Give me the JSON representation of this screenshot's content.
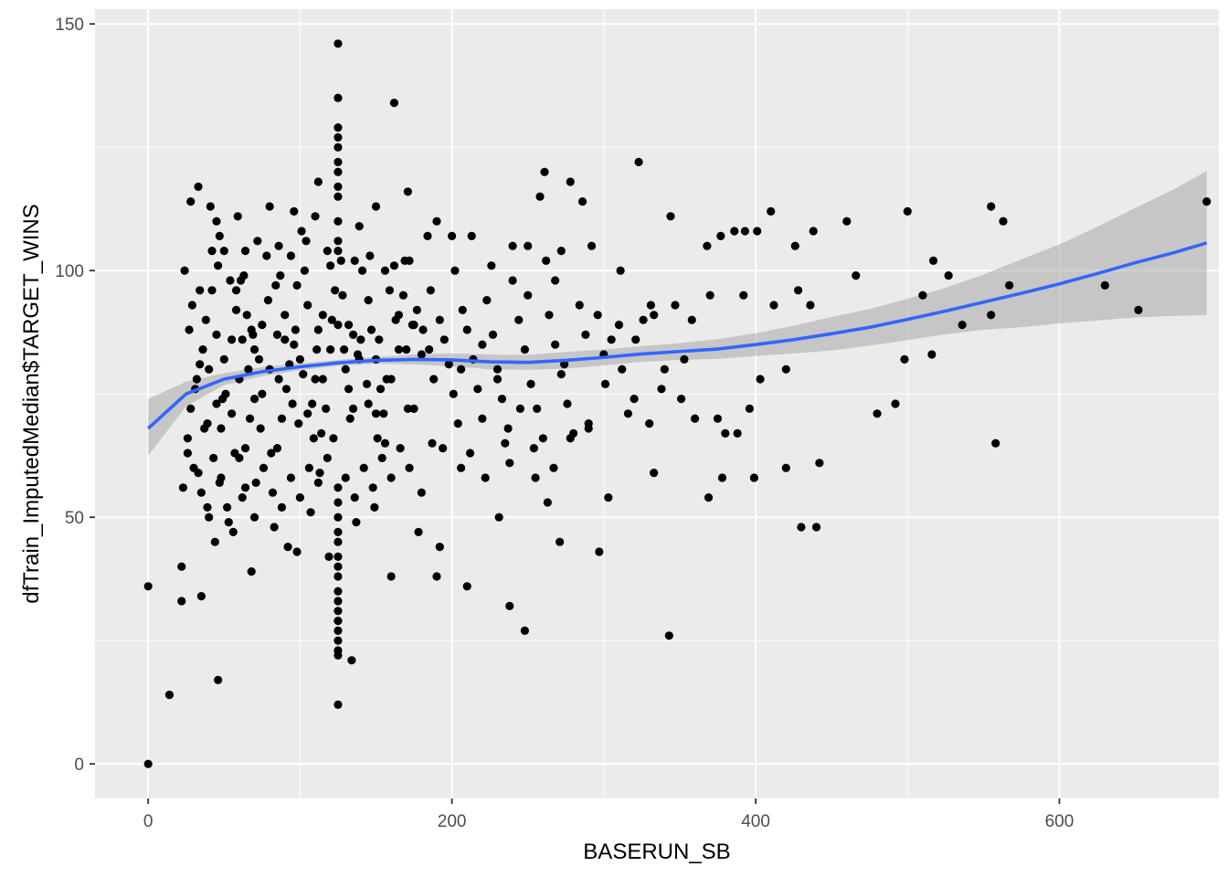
{
  "chart_data": {
    "type": "scatter",
    "title": "",
    "xlabel": "BASERUN_SB",
    "ylabel": "dfTrain_ImputedMedian$TARGET_WINS",
    "xlim": [
      -35,
      705
    ],
    "ylim": [
      -7,
      153
    ],
    "x_ticks": [
      0,
      200,
      400,
      600
    ],
    "y_ticks": [
      0,
      50,
      100,
      150
    ],
    "x_tick_labels": [
      "0",
      "200",
      "400",
      "600"
    ],
    "y_tick_labels": [
      "0",
      "50",
      "100",
      "150"
    ],
    "grid": true,
    "legend": "none",
    "colors": {
      "panel": "#ebebeb",
      "grid": "#ffffff",
      "points": "#000000",
      "smooth_line": "#3366ff",
      "confidence_band": "#999999"
    },
    "smooth": {
      "x": [
        0,
        25,
        50,
        75,
        100,
        125,
        150,
        175,
        200,
        225,
        250,
        275,
        300,
        325,
        350,
        375,
        400,
        425,
        450,
        475,
        500,
        525,
        550,
        575,
        600,
        625,
        650,
        675,
        697
      ],
      "y": [
        68,
        75,
        78,
        79.5,
        80.5,
        81.3,
        81.8,
        82,
        81.9,
        81.5,
        81.4,
        81.8,
        82.4,
        83.1,
        83.6,
        84.1,
        85,
        86,
        87.2,
        88.5,
        90.1,
        91.8,
        93.6,
        95.4,
        97.3,
        99.4,
        101.6,
        103.6,
        105.6
      ],
      "ci_lower": [
        62.5,
        72.5,
        76.8,
        78.6,
        79.8,
        80.7,
        81.1,
        81,
        80.6,
        80,
        79.9,
        80.1,
        80.8,
        81.5,
        81.9,
        82.1,
        82.7,
        83.2,
        83.8,
        84.8,
        85.9,
        87.1,
        88,
        88.5,
        89.3,
        89.9,
        90.5,
        90.8,
        91
      ],
      "ci_upper": [
        74,
        77.5,
        79.2,
        80.4,
        81.2,
        81.9,
        82.5,
        83,
        83.2,
        83,
        82.9,
        83.5,
        84,
        84.7,
        85.3,
        86.1,
        87.3,
        88.8,
        90.6,
        92.2,
        94.3,
        96.5,
        99.2,
        102.3,
        105.3,
        108.9,
        112.7,
        116.4,
        120.2
      ]
    },
    "points": [
      [
        0,
        36
      ],
      [
        0,
        0
      ],
      [
        14,
        14
      ],
      [
        22,
        40
      ],
      [
        22,
        33
      ],
      [
        35,
        34
      ],
      [
        46,
        17
      ],
      [
        68,
        39
      ],
      [
        112,
        118
      ],
      [
        125,
        146
      ],
      [
        125,
        135
      ],
      [
        125,
        129
      ],
      [
        125,
        127
      ],
      [
        125,
        125
      ],
      [
        125,
        122
      ],
      [
        125,
        120
      ],
      [
        125,
        117
      ],
      [
        125,
        115
      ],
      [
        125,
        110
      ],
      [
        125,
        106
      ],
      [
        125,
        104
      ],
      [
        125,
        56
      ],
      [
        125,
        53
      ],
      [
        125,
        50
      ],
      [
        125,
        47
      ],
      [
        125,
        45
      ],
      [
        125,
        42
      ],
      [
        125,
        40
      ],
      [
        125,
        38
      ],
      [
        125,
        35
      ],
      [
        125,
        33
      ],
      [
        125,
        31
      ],
      [
        125,
        29
      ],
      [
        125,
        27
      ],
      [
        125,
        25
      ],
      [
        125,
        23
      ],
      [
        125,
        22
      ],
      [
        125,
        12
      ],
      [
        134,
        21
      ],
      [
        162,
        134
      ],
      [
        160,
        38
      ],
      [
        33,
        117
      ],
      [
        41,
        113
      ],
      [
        45,
        110
      ],
      [
        28,
        114
      ],
      [
        59,
        111
      ],
      [
        80,
        113
      ],
      [
        96,
        112
      ],
      [
        101,
        108
      ],
      [
        110,
        111
      ],
      [
        139,
        109
      ],
      [
        150,
        113
      ],
      [
        171,
        116
      ],
      [
        184,
        107
      ],
      [
        190,
        110
      ],
      [
        200,
        107
      ],
      [
        213,
        107
      ],
      [
        206,
        80
      ],
      [
        220,
        85
      ],
      [
        230,
        78
      ],
      [
        240,
        105
      ],
      [
        250,
        105
      ],
      [
        258,
        115
      ],
      [
        261,
        120
      ],
      [
        268,
        98
      ],
      [
        278,
        118
      ],
      [
        286,
        114
      ],
      [
        292,
        105
      ],
      [
        305,
        86
      ],
      [
        311,
        100
      ],
      [
        323,
        122
      ],
      [
        331,
        93
      ],
      [
        340,
        80
      ],
      [
        344,
        111
      ],
      [
        353,
        82
      ],
      [
        368,
        105
      ],
      [
        377,
        107
      ],
      [
        386,
        108
      ],
      [
        393,
        108
      ],
      [
        401,
        108
      ],
      [
        410,
        112
      ],
      [
        426,
        105
      ],
      [
        438,
        108
      ],
      [
        460,
        110
      ],
      [
        466,
        99
      ],
      [
        480,
        71
      ],
      [
        492,
        73
      ],
      [
        500,
        112
      ],
      [
        510,
        95
      ],
      [
        517,
        102
      ],
      [
        527,
        99
      ],
      [
        536,
        89
      ],
      [
        555,
        113
      ],
      [
        563,
        110
      ],
      [
        567,
        97
      ],
      [
        558,
        65
      ],
      [
        555,
        91
      ],
      [
        630,
        97
      ],
      [
        652,
        92
      ],
      [
        697,
        114
      ],
      [
        498,
        82
      ],
      [
        516,
        83
      ],
      [
        420,
        60
      ],
      [
        430,
        48
      ],
      [
        440,
        48
      ],
      [
        442,
        61
      ],
      [
        399,
        58
      ],
      [
        380,
        67
      ],
      [
        378,
        58
      ],
      [
        369,
        54
      ],
      [
        343,
        26
      ],
      [
        333,
        59
      ],
      [
        303,
        54
      ],
      [
        297,
        43
      ],
      [
        290,
        69
      ],
      [
        271,
        45
      ],
      [
        263,
        53
      ],
      [
        254,
        64
      ],
      [
        248,
        27
      ],
      [
        238,
        32
      ],
      [
        231,
        50
      ],
      [
        210,
        36
      ],
      [
        192,
        44
      ],
      [
        190,
        38
      ],
      [
        178,
        47
      ],
      [
        180,
        55
      ],
      [
        187,
        65
      ],
      [
        206,
        60
      ],
      [
        222,
        58
      ],
      [
        235,
        65
      ],
      [
        245,
        72
      ],
      [
        255,
        58
      ],
      [
        267,
        60
      ],
      [
        278,
        66
      ],
      [
        290,
        68
      ],
      [
        301,
        77
      ],
      [
        312,
        80
      ],
      [
        320,
        74
      ],
      [
        330,
        69
      ],
      [
        338,
        76
      ],
      [
        351,
        74
      ],
      [
        360,
        70
      ],
      [
        375,
        70
      ],
      [
        388,
        67
      ],
      [
        396,
        72
      ],
      [
        403,
        78
      ],
      [
        412,
        93
      ],
      [
        420,
        80
      ],
      [
        428,
        96
      ],
      [
        436,
        93
      ],
      [
        392,
        95
      ],
      [
        370,
        95
      ],
      [
        358,
        90
      ],
      [
        347,
        93
      ],
      [
        333,
        91
      ],
      [
        321,
        86
      ],
      [
        310,
        89
      ],
      [
        296,
        91
      ],
      [
        284,
        93
      ],
      [
        272,
        104
      ],
      [
        262,
        102
      ],
      [
        185,
        84
      ],
      [
        188,
        78
      ],
      [
        192,
        90
      ],
      [
        195,
        86
      ],
      [
        198,
        81
      ],
      [
        201,
        75
      ],
      [
        204,
        69
      ],
      [
        207,
        92
      ],
      [
        210,
        88
      ],
      [
        214,
        82
      ],
      [
        217,
        76
      ],
      [
        220,
        70
      ],
      [
        223,
        94
      ],
      [
        227,
        87
      ],
      [
        230,
        80
      ],
      [
        233,
        74
      ],
      [
        237,
        68
      ],
      [
        240,
        98
      ],
      [
        244,
        90
      ],
      [
        248,
        84
      ],
      [
        252,
        77
      ],
      [
        256,
        72
      ],
      [
        260,
        66
      ],
      [
        264,
        91
      ],
      [
        268,
        85
      ],
      [
        272,
        79
      ],
      [
        276,
        73
      ],
      [
        280,
        67
      ],
      [
        186,
        96
      ],
      [
        194,
        64
      ],
      [
        202,
        100
      ],
      [
        212,
        63
      ],
      [
        226,
        101
      ],
      [
        238,
        61
      ],
      [
        250,
        95
      ],
      [
        274,
        81
      ],
      [
        288,
        87
      ],
      [
        300,
        83
      ],
      [
        316,
        71
      ],
      [
        326,
        90
      ],
      [
        30,
        60
      ],
      [
        35,
        55
      ],
      [
        40,
        50
      ],
      [
        44,
        45
      ],
      [
        48,
        58
      ],
      [
        52,
        52
      ],
      [
        56,
        47
      ],
      [
        60,
        62
      ],
      [
        64,
        56
      ],
      [
        70,
        50
      ],
      [
        76,
        60
      ],
      [
        82,
        55
      ],
      [
        88,
        52
      ],
      [
        94,
        58
      ],
      [
        100,
        54
      ],
      [
        106,
        60
      ],
      [
        112,
        57
      ],
      [
        118,
        62
      ],
      [
        130,
        58
      ],
      [
        136,
        54
      ],
      [
        142,
        60
      ],
      [
        148,
        56
      ],
      [
        154,
        62
      ],
      [
        160,
        58
      ],
      [
        166,
        64
      ],
      [
        172,
        60
      ],
      [
        26,
        66
      ],
      [
        28,
        72
      ],
      [
        32,
        78
      ],
      [
        36,
        84
      ],
      [
        38,
        90
      ],
      [
        42,
        96
      ],
      [
        46,
        101
      ],
      [
        50,
        104
      ],
      [
        54,
        98
      ],
      [
        58,
        92
      ],
      [
        62,
        86
      ],
      [
        66,
        80
      ],
      [
        70,
        74
      ],
      [
        74,
        68
      ],
      [
        78,
        103
      ],
      [
        84,
        97
      ],
      [
        90,
        91
      ],
      [
        96,
        85
      ],
      [
        102,
        79
      ],
      [
        108,
        73
      ],
      [
        114,
        67
      ],
      [
        120,
        101
      ],
      [
        128,
        95
      ],
      [
        132,
        89
      ],
      [
        138,
        83
      ],
      [
        144,
        77
      ],
      [
        150,
        71
      ],
      [
        156,
        65
      ],
      [
        162,
        101
      ],
      [
        168,
        95
      ],
      [
        174,
        89
      ],
      [
        180,
        83
      ],
      [
        24,
        100
      ],
      [
        27,
        88
      ],
      [
        31,
        76
      ],
      [
        37,
        68
      ],
      [
        43,
        62
      ],
      [
        49,
        74
      ],
      [
        55,
        86
      ],
      [
        61,
        98
      ],
      [
        67,
        70
      ],
      [
        73,
        82
      ],
      [
        79,
        94
      ],
      [
        85,
        64
      ],
      [
        91,
        76
      ],
      [
        97,
        88
      ],
      [
        103,
        100
      ],
      [
        109,
        66
      ],
      [
        115,
        78
      ],
      [
        121,
        90
      ],
      [
        127,
        102
      ],
      [
        133,
        70
      ],
      [
        139,
        82
      ],
      [
        145,
        94
      ],
      [
        151,
        66
      ],
      [
        157,
        78
      ],
      [
        163,
        90
      ],
      [
        169,
        102
      ],
      [
        175,
        72
      ],
      [
        181,
        88
      ],
      [
        29,
        93
      ],
      [
        34,
        81
      ],
      [
        39,
        69
      ],
      [
        45,
        87
      ],
      [
        51,
        75
      ],
      [
        57,
        63
      ],
      [
        63,
        99
      ],
      [
        69,
        87
      ],
      [
        75,
        75
      ],
      [
        81,
        63
      ],
      [
        87,
        99
      ],
      [
        93,
        81
      ],
      [
        99,
        69
      ],
      [
        105,
        93
      ],
      [
        111,
        84
      ],
      [
        117,
        72
      ],
      [
        123,
        96
      ],
      [
        129,
        84
      ],
      [
        135,
        72
      ],
      [
        141,
        100
      ],
      [
        147,
        88
      ],
      [
        153,
        76
      ],
      [
        159,
        96
      ],
      [
        165,
        84
      ],
      [
        171,
        72
      ],
      [
        177,
        92
      ],
      [
        40,
        80
      ],
      [
        50,
        82
      ],
      [
        60,
        78
      ],
      [
        70,
        84
      ],
      [
        80,
        80
      ],
      [
        90,
        86
      ],
      [
        100,
        82
      ],
      [
        110,
        78
      ],
      [
        120,
        84
      ],
      [
        130,
        80
      ],
      [
        140,
        86
      ],
      [
        150,
        82
      ],
      [
        160,
        78
      ],
      [
        170,
        84
      ],
      [
        45,
        73
      ],
      [
        55,
        71
      ],
      [
        65,
        91
      ],
      [
        75,
        89
      ],
      [
        85,
        87
      ],
      [
        95,
        73
      ],
      [
        105,
        71
      ],
      [
        115,
        91
      ],
      [
        125,
        89
      ],
      [
        135,
        87
      ],
      [
        145,
        73
      ],
      [
        155,
        71
      ],
      [
        165,
        91
      ],
      [
        175,
        89
      ],
      [
        42,
        104
      ],
      [
        47,
        107
      ],
      [
        64,
        104
      ],
      [
        72,
        106
      ],
      [
        86,
        105
      ],
      [
        94,
        103
      ],
      [
        104,
        106
      ],
      [
        118,
        104
      ],
      [
        136,
        102
      ],
      [
        146,
        103
      ],
      [
        156,
        100
      ],
      [
        172,
        102
      ],
      [
        23,
        56
      ],
      [
        26,
        63
      ],
      [
        33,
        59
      ],
      [
        39,
        52
      ],
      [
        47,
        57
      ],
      [
        53,
        49
      ],
      [
        62,
        54
      ],
      [
        71,
        57
      ],
      [
        83,
        48
      ],
      [
        92,
        44
      ],
      [
        98,
        43
      ],
      [
        119,
        42
      ],
      [
        107,
        51
      ],
      [
        113,
        59
      ],
      [
        137,
        49
      ],
      [
        149,
        52
      ],
      [
        64,
        64
      ],
      [
        88,
        70
      ],
      [
        58,
        96
      ],
      [
        98,
        97
      ],
      [
        48,
        68
      ],
      [
        86,
        78
      ],
      [
        68,
        88
      ],
      [
        112,
        88
      ],
      [
        132,
        76
      ],
      [
        152,
        86
      ],
      [
        34,
        96
      ],
      [
        122,
        66
      ]
    ]
  }
}
